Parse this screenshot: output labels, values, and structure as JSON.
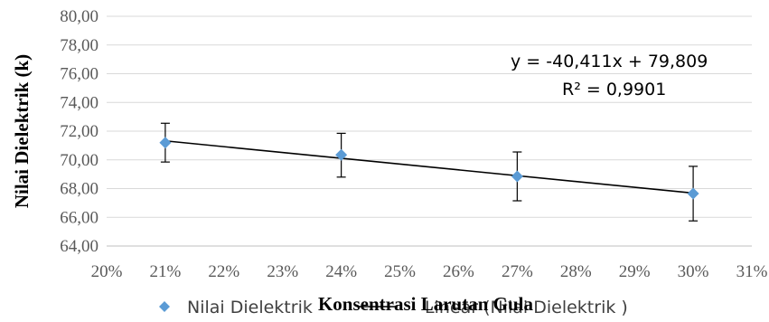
{
  "chart_data": {
    "type": "scatter",
    "title": "",
    "xlabel": "Konsentrasi Larutan Gula",
    "ylabel": "Nilai Dielektrik (k)",
    "xlim": [
      0.2,
      0.31
    ],
    "ylim": [
      64,
      80
    ],
    "x_ticks": [
      "20%",
      "21%",
      "22%",
      "23%",
      "24%",
      "25%",
      "26%",
      "27%",
      "28%",
      "29%",
      "30%",
      "31%"
    ],
    "y_ticks": [
      "64,00",
      "66,00",
      "68,00",
      "70,00",
      "72,00",
      "74,00",
      "76,00",
      "78,00",
      "80,00"
    ],
    "grid": true,
    "series": [
      {
        "name": "Nilai Dielektrik",
        "x": [
          0.21,
          0.24,
          0.27,
          0.3
        ],
        "y": [
          71.2,
          70.35,
          68.85,
          67.65
        ],
        "error_plus": [
          1.35,
          1.5,
          1.7,
          1.9
        ],
        "error_minus": [
          1.35,
          1.55,
          1.7,
          1.9
        ],
        "color": "#5b9bd5"
      }
    ],
    "trendline": {
      "name": "Linear (Nilai Dielektrik )",
      "slope": -40.411,
      "intercept": 79.809,
      "equation": "y = -40,411x + 79,809",
      "r_squared": "R² = 0,9901",
      "color": "#000000"
    },
    "legend_position": "bottom"
  }
}
